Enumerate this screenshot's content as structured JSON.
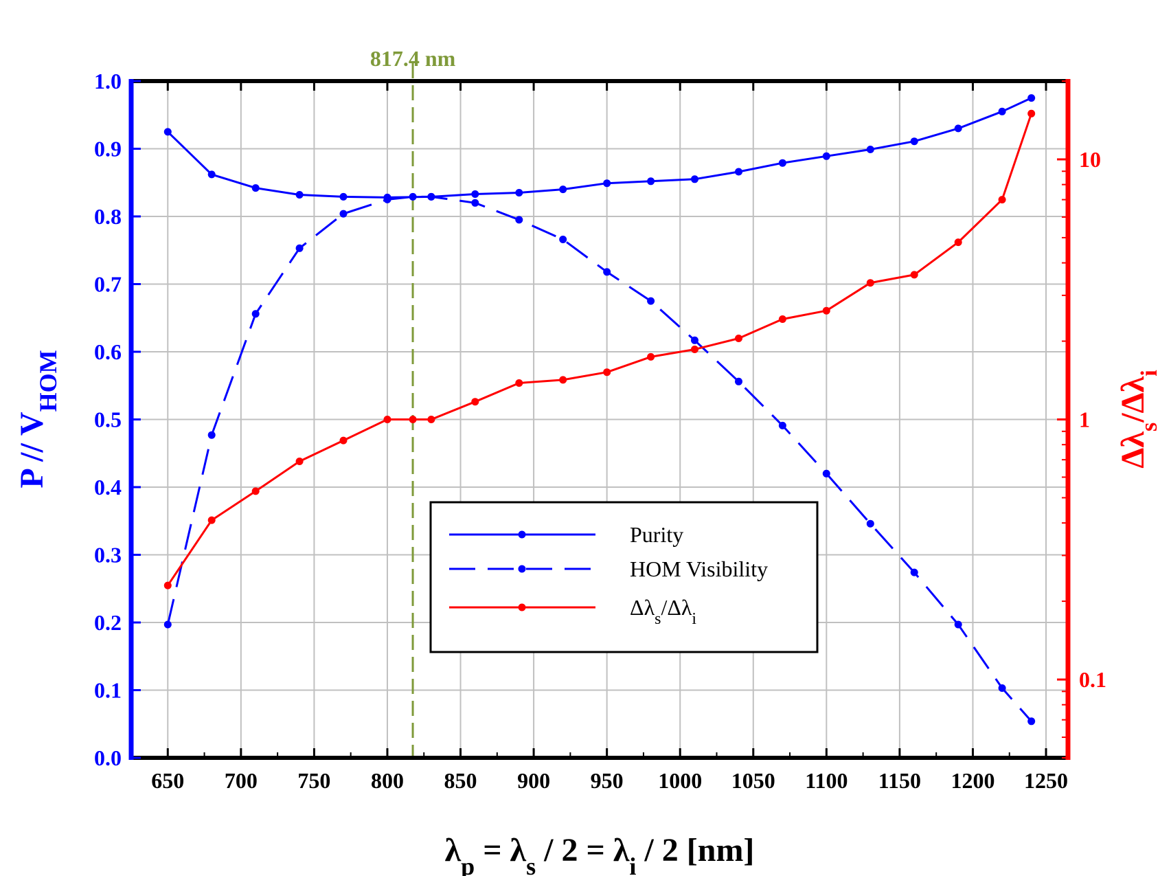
{
  "chart_data": {
    "type": "line",
    "x": [
      650,
      680,
      710,
      740,
      770,
      800,
      817.4,
      830,
      860,
      890,
      920,
      950,
      980,
      1010,
      1040,
      1070,
      1100,
      1130,
      1160,
      1190,
      1220,
      1240
    ],
    "x_label": {
      "prefix": "λ",
      "sub1": "p",
      "mid1": " = λ",
      "sub2": "s",
      "mid2": " / 2 = λ",
      "sub3": "i",
      "suffix": " / 2 [nm]"
    },
    "y_left_label": {
      "base": "P // V",
      "sub": "HOM"
    },
    "y_right_label": {
      "d1": "Δλ",
      "sub1": "s",
      "slash": "/Δλ",
      "sub2": "i"
    },
    "x_range": [
      625,
      1265
    ],
    "x_ticks": [
      650,
      700,
      750,
      800,
      850,
      900,
      950,
      1000,
      1050,
      1100,
      1150,
      1200,
      1250
    ],
    "y_left_range": [
      0.0,
      1.0
    ],
    "y_left_ticks": [
      "0.0",
      "0.1",
      "0.2",
      "0.3",
      "0.4",
      "0.5",
      "0.6",
      "0.7",
      "0.8",
      "0.9",
      "1.0"
    ],
    "y_right_scale": "log",
    "y_right_range": [
      0.05,
      20
    ],
    "y_right_ticks": [
      {
        "value": 0.1,
        "label": "0.1"
      },
      {
        "value": 1,
        "label": "1"
      },
      {
        "value": 10,
        "label": "10"
      }
    ],
    "grid": true,
    "vertical_marker": {
      "x": 817.4,
      "label": "817.4 nm",
      "color": "#7f9a3a"
    },
    "series": [
      {
        "name": "Purity",
        "axis": "left",
        "color": "#0000ff",
        "dash": "solid",
        "x": [
          650,
          680,
          710,
          740,
          770,
          800,
          830,
          860,
          890,
          920,
          950,
          980,
          1010,
          1040,
          1070,
          1100,
          1130,
          1160,
          1190,
          1220,
          1240
        ],
        "values": [
          0.925,
          0.862,
          0.842,
          0.832,
          0.829,
          0.828,
          0.829,
          0.833,
          0.835,
          0.84,
          0.849,
          0.852,
          0.855,
          0.866,
          0.879,
          0.889,
          0.899,
          0.911,
          0.93,
          0.955,
          0.975
        ]
      },
      {
        "name": "HOM Visibility",
        "axis": "left",
        "color": "#0000ff",
        "dash": "dashed",
        "x": [
          650,
          680,
          710,
          740,
          770,
          800,
          817.4,
          830,
          860,
          890,
          920,
          950,
          980,
          1010,
          1040,
          1070,
          1100,
          1130,
          1160,
          1190,
          1220,
          1240
        ],
        "values": [
          0.197,
          0.477,
          0.656,
          0.753,
          0.804,
          0.825,
          0.829,
          0.829,
          0.82,
          0.795,
          0.766,
          0.718,
          0.675,
          0.617,
          0.556,
          0.491,
          0.42,
          0.346,
          0.274,
          0.197,
          0.103,
          0.054
        ]
      },
      {
        "name": "Δλs/Δλi",
        "axis": "right",
        "color": "#ff0000",
        "dash": "solid",
        "x": [
          650,
          680,
          710,
          740,
          770,
          800,
          817.4,
          830,
          860,
          890,
          920,
          950,
          980,
          1010,
          1040,
          1070,
          1100,
          1130,
          1160,
          1190,
          1220,
          1240
        ],
        "values": [
          0.23,
          0.41,
          0.53,
          0.69,
          0.83,
          1.0,
          1.0,
          1.0,
          1.17,
          1.38,
          1.42,
          1.52,
          1.74,
          1.86,
          2.05,
          2.43,
          2.62,
          3.35,
          3.6,
          4.8,
          7.0,
          15.0
        ]
      }
    ],
    "legend": {
      "position": "center-bottom",
      "entries": [
        {
          "label": "Purity"
        },
        {
          "label": "HOM Visibility"
        },
        {
          "math": {
            "d1": "Δλ",
            "sub1": "s",
            "slash": "/Δλ",
            "sub2": "i"
          }
        }
      ]
    }
  }
}
